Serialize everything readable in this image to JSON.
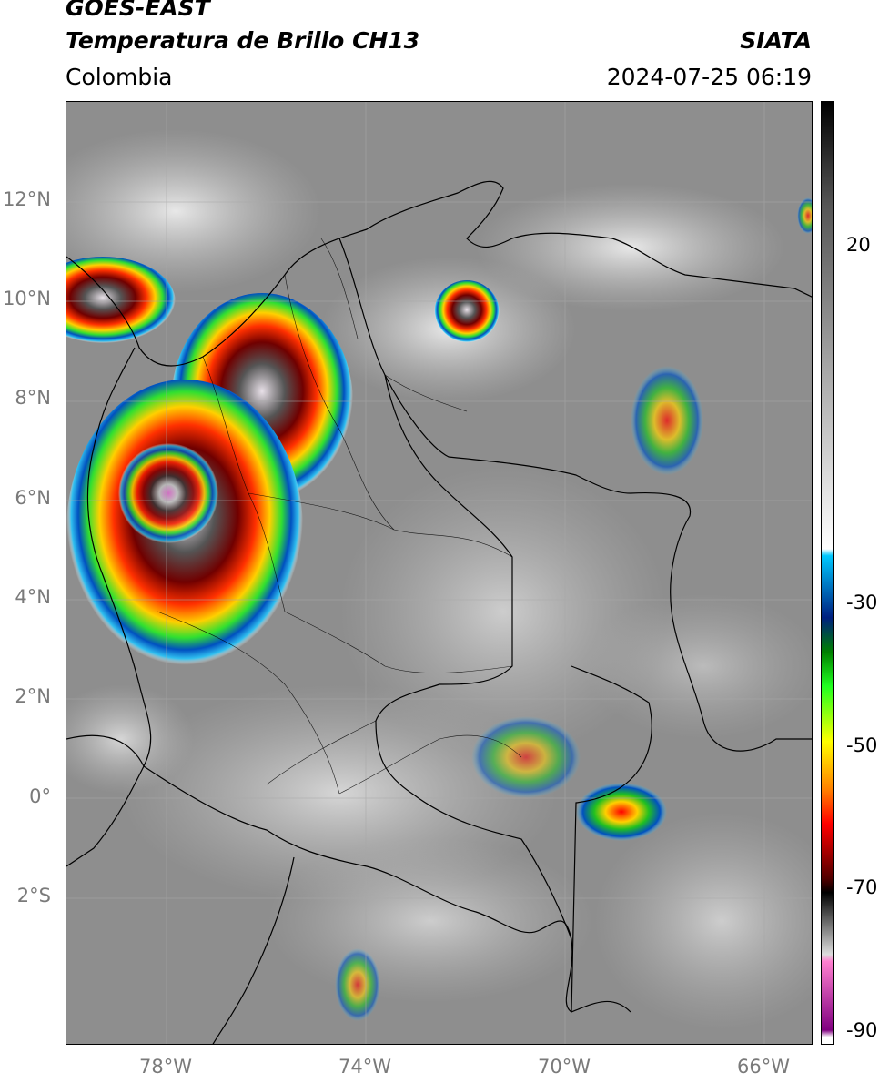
{
  "header": {
    "satellite": "GOES-EAST",
    "product": "Temperatura de Brillo CH13",
    "org": "SIATA",
    "region": "Colombia",
    "datetime": "2024-07-25 06:19"
  },
  "map": {
    "lat_ticks": [
      "12°N",
      "10°N",
      "8°N",
      "6°N",
      "4°N",
      "2°N",
      "0°",
      "2°S"
    ],
    "lon_ticks": [
      "78°W",
      "74°W",
      "70°W",
      "66°W"
    ],
    "lat_range": [
      -5,
      14
    ],
    "lon_range": [
      -80,
      -65
    ],
    "colors": {
      "background_gray": "#8c8c8c",
      "border": "#000000"
    }
  },
  "colorbar": {
    "ticks": [
      "20",
      "-30",
      "-50",
      "-70",
      "-90"
    ],
    "tick_values": [
      20,
      -30,
      -50,
      -70,
      -90
    ],
    "range": [
      -92,
      45
    ],
    "stops": [
      {
        "v": 45,
        "c": "#000000"
      },
      {
        "v": 30,
        "c": "#555555"
      },
      {
        "v": -20,
        "c": "#ffffff"
      },
      {
        "v": -21,
        "c": "#00c8ff"
      },
      {
        "v": -30,
        "c": "#002080"
      },
      {
        "v": -35,
        "c": "#008000"
      },
      {
        "v": -40,
        "c": "#20ff20"
      },
      {
        "v": -48,
        "c": "#ffff00"
      },
      {
        "v": -55,
        "c": "#ff8000"
      },
      {
        "v": -60,
        "c": "#ff0000"
      },
      {
        "v": -68,
        "c": "#500000"
      },
      {
        "v": -70,
        "c": "#000000"
      },
      {
        "v": -79,
        "c": "#dddddd"
      },
      {
        "v": -80,
        "c": "#ff80d0"
      },
      {
        "v": -90,
        "c": "#800080"
      },
      {
        "v": -91,
        "c": "#ffffff"
      }
    ]
  }
}
